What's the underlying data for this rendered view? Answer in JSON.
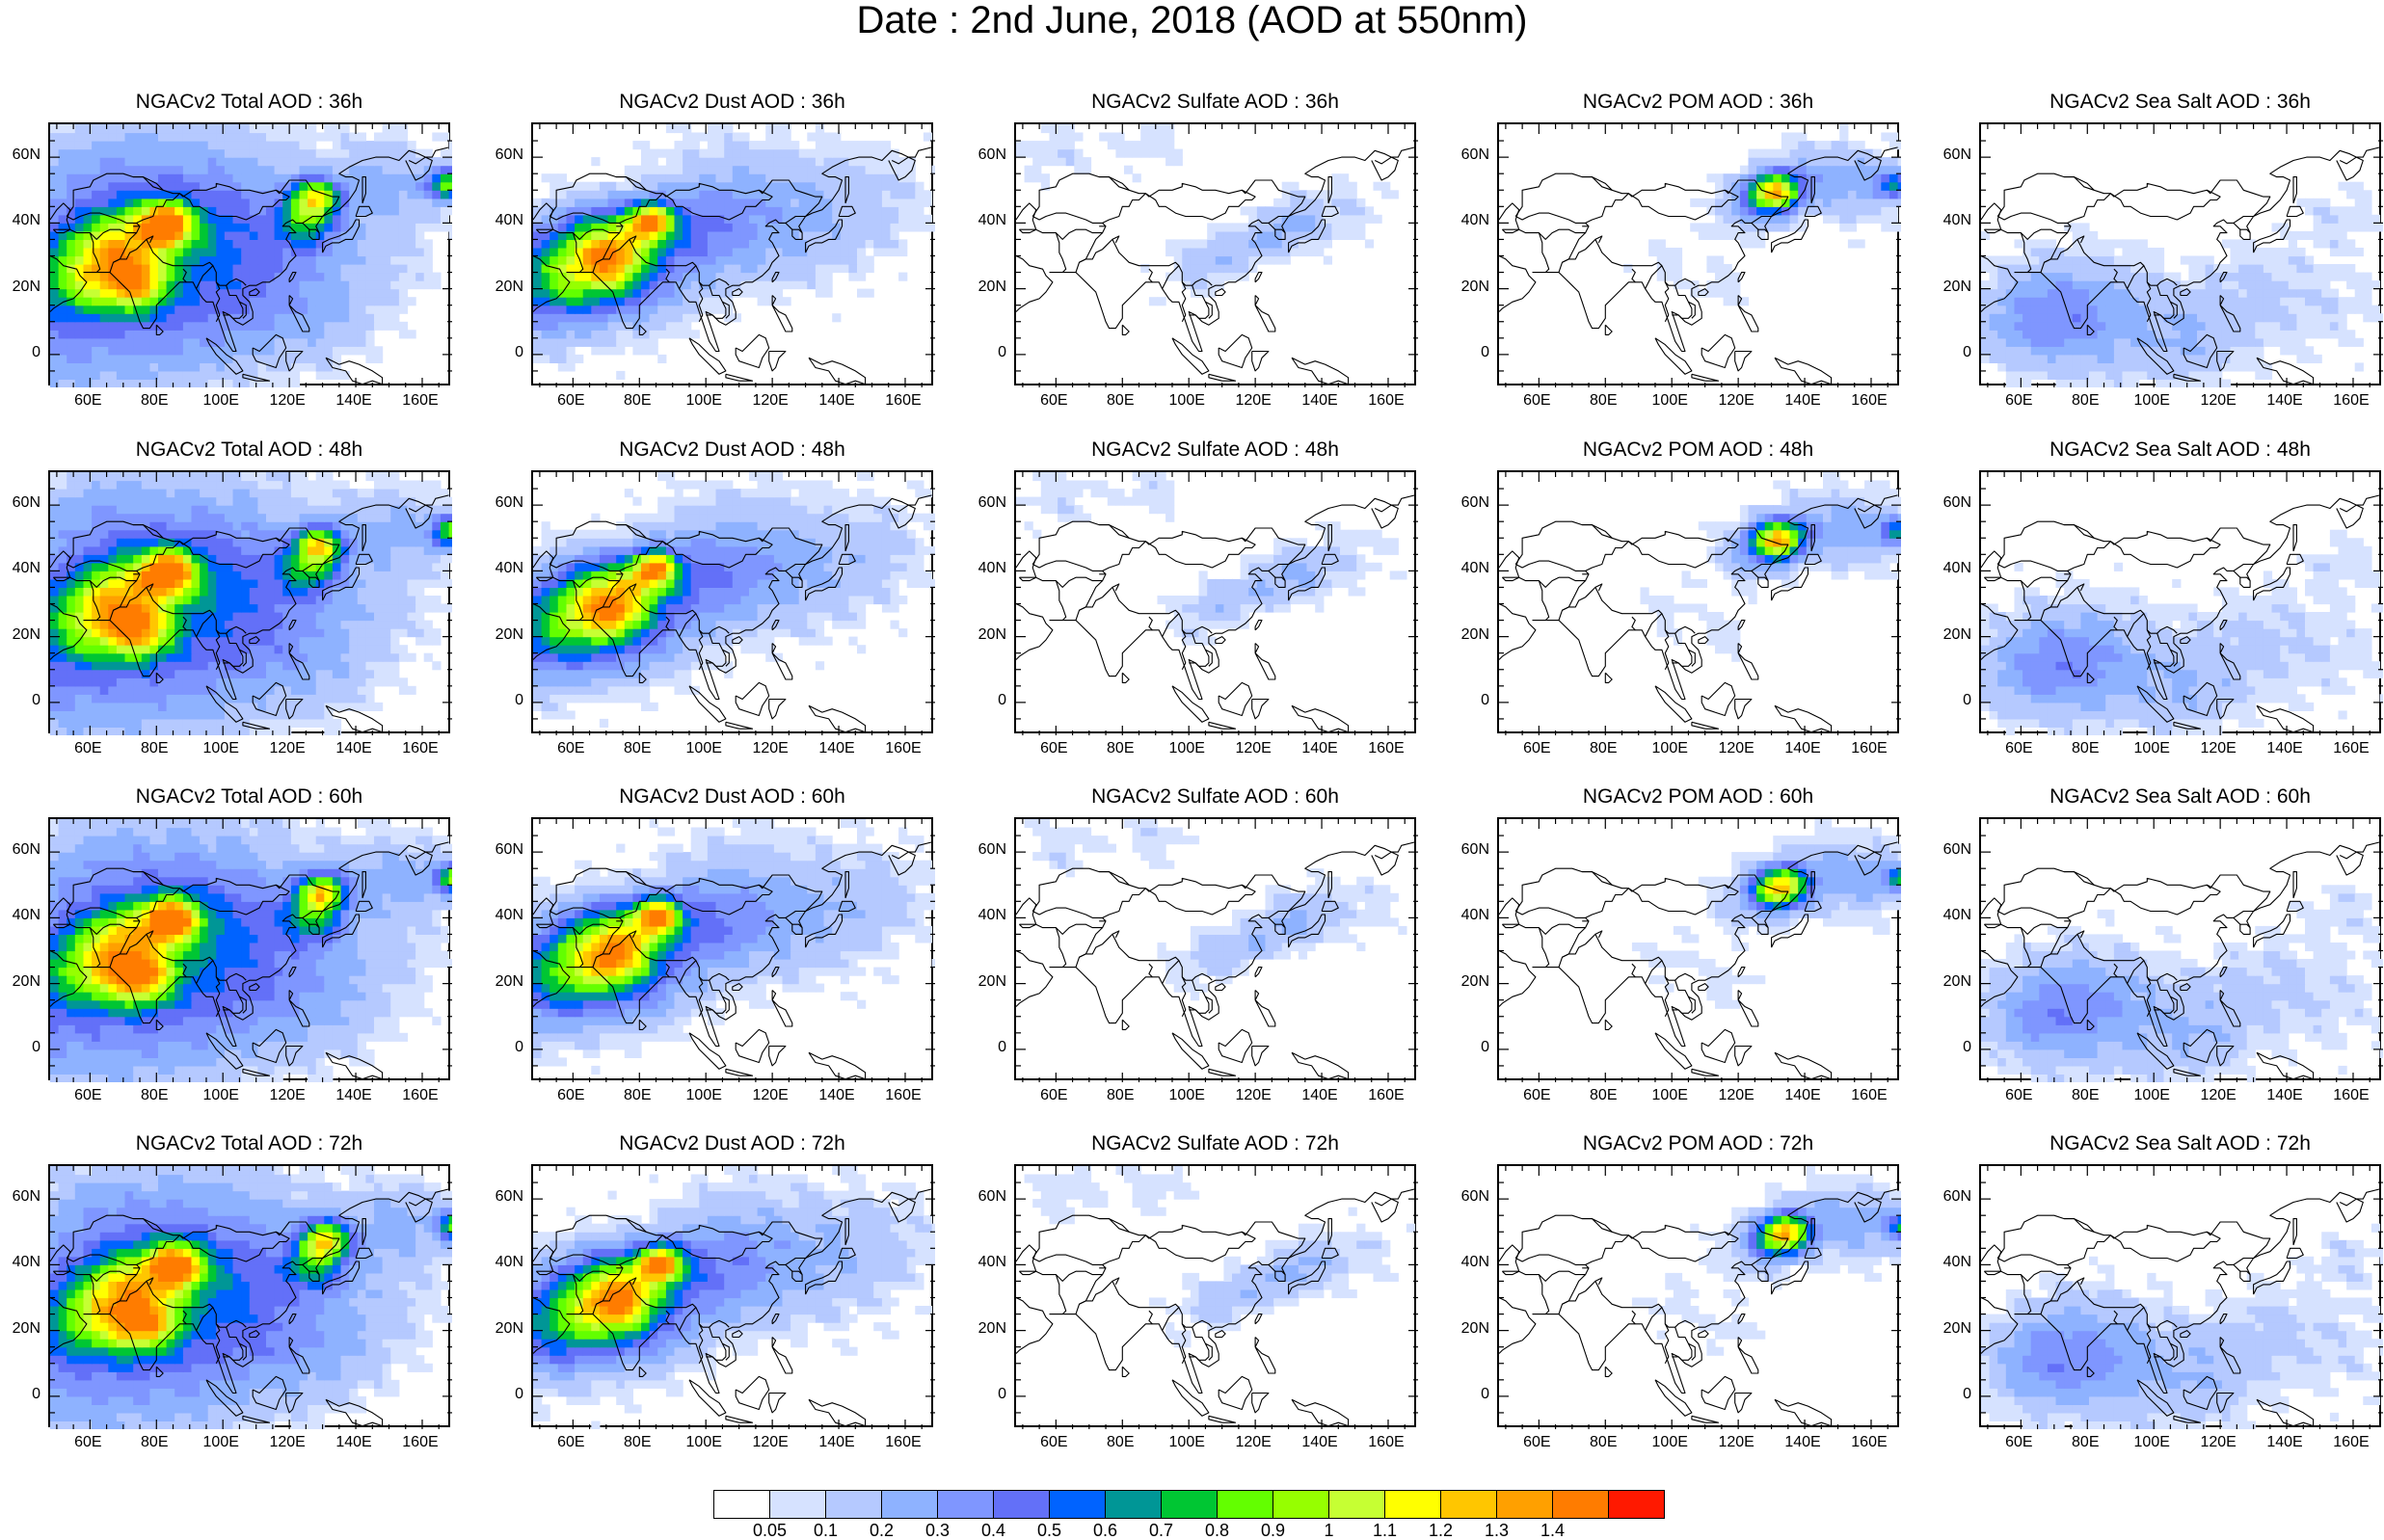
{
  "title": "Date : 2nd June, 2018 (AOD at 550nm)",
  "x_ticks": [
    "60E",
    "80E",
    "100E",
    "120E",
    "140E",
    "160E"
  ],
  "y_ticks": [
    "60N",
    "40N",
    "20N",
    "0"
  ],
  "lon_range": [
    48,
    169
  ],
  "lat_range": [
    -10,
    70
  ],
  "panels": [
    {
      "title": "NGACv2 Total AOD : 36h",
      "species": "total",
      "hour": 36
    },
    {
      "title": "NGACv2 Dust AOD : 36h",
      "species": "dust",
      "hour": 36
    },
    {
      "title": "NGACv2 Sulfate AOD : 36h",
      "species": "sulfate",
      "hour": 36
    },
    {
      "title": "NGACv2 POM AOD : 36h",
      "species": "pom",
      "hour": 36
    },
    {
      "title": "NGACv2 Sea Salt AOD : 36h",
      "species": "seasalt",
      "hour": 36
    },
    {
      "title": "NGACv2 Total AOD : 48h",
      "species": "total",
      "hour": 48
    },
    {
      "title": "NGACv2 Dust AOD : 48h",
      "species": "dust",
      "hour": 48
    },
    {
      "title": "NGACv2 Sulfate AOD : 48h",
      "species": "sulfate",
      "hour": 48
    },
    {
      "title": "NGACv2 POM AOD : 48h",
      "species": "pom",
      "hour": 48
    },
    {
      "title": "NGACv2 Sea Salt AOD : 48h",
      "species": "seasalt",
      "hour": 48
    },
    {
      "title": "NGACv2 Total AOD : 60h",
      "species": "total",
      "hour": 60
    },
    {
      "title": "NGACv2 Dust AOD : 60h",
      "species": "dust",
      "hour": 60
    },
    {
      "title": "NGACv2 Sulfate AOD : 60h",
      "species": "sulfate",
      "hour": 60
    },
    {
      "title": "NGACv2 POM AOD : 60h",
      "species": "pom",
      "hour": 60
    },
    {
      "title": "NGACv2 Sea Salt AOD : 60h",
      "species": "seasalt",
      "hour": 60
    },
    {
      "title": "NGACv2 Total AOD : 72h",
      "species": "total",
      "hour": 72
    },
    {
      "title": "NGACv2 Dust AOD : 72h",
      "species": "dust",
      "hour": 72
    },
    {
      "title": "NGACv2 Sulfate AOD : 72h",
      "species": "sulfate",
      "hour": 72
    },
    {
      "title": "NGACv2 POM AOD : 72h",
      "species": "pom",
      "hour": 72
    },
    {
      "title": "NGACv2 Sea Salt  AOD : 72h",
      "species": "seasalt",
      "hour": 72
    }
  ],
  "colorbar": {
    "labels": [
      "0.05",
      "0.1",
      "0.2",
      "0.3",
      "0.4",
      "0.5",
      "0.6",
      "0.7",
      "0.8",
      "0.9",
      "1",
      "1.1",
      "1.2",
      "1.3",
      "1.4"
    ],
    "colors": [
      "#ffffff",
      "#d6e2ff",
      "#b5c9ff",
      "#8eb2ff",
      "#7f96ff",
      "#6370f8",
      "#0063ff",
      "#009696",
      "#00c633",
      "#63ff00",
      "#96ff00",
      "#c6ff33",
      "#ffff00",
      "#ffc600",
      "#ffa000",
      "#ff7c00",
      "#ff1900"
    ]
  }
}
